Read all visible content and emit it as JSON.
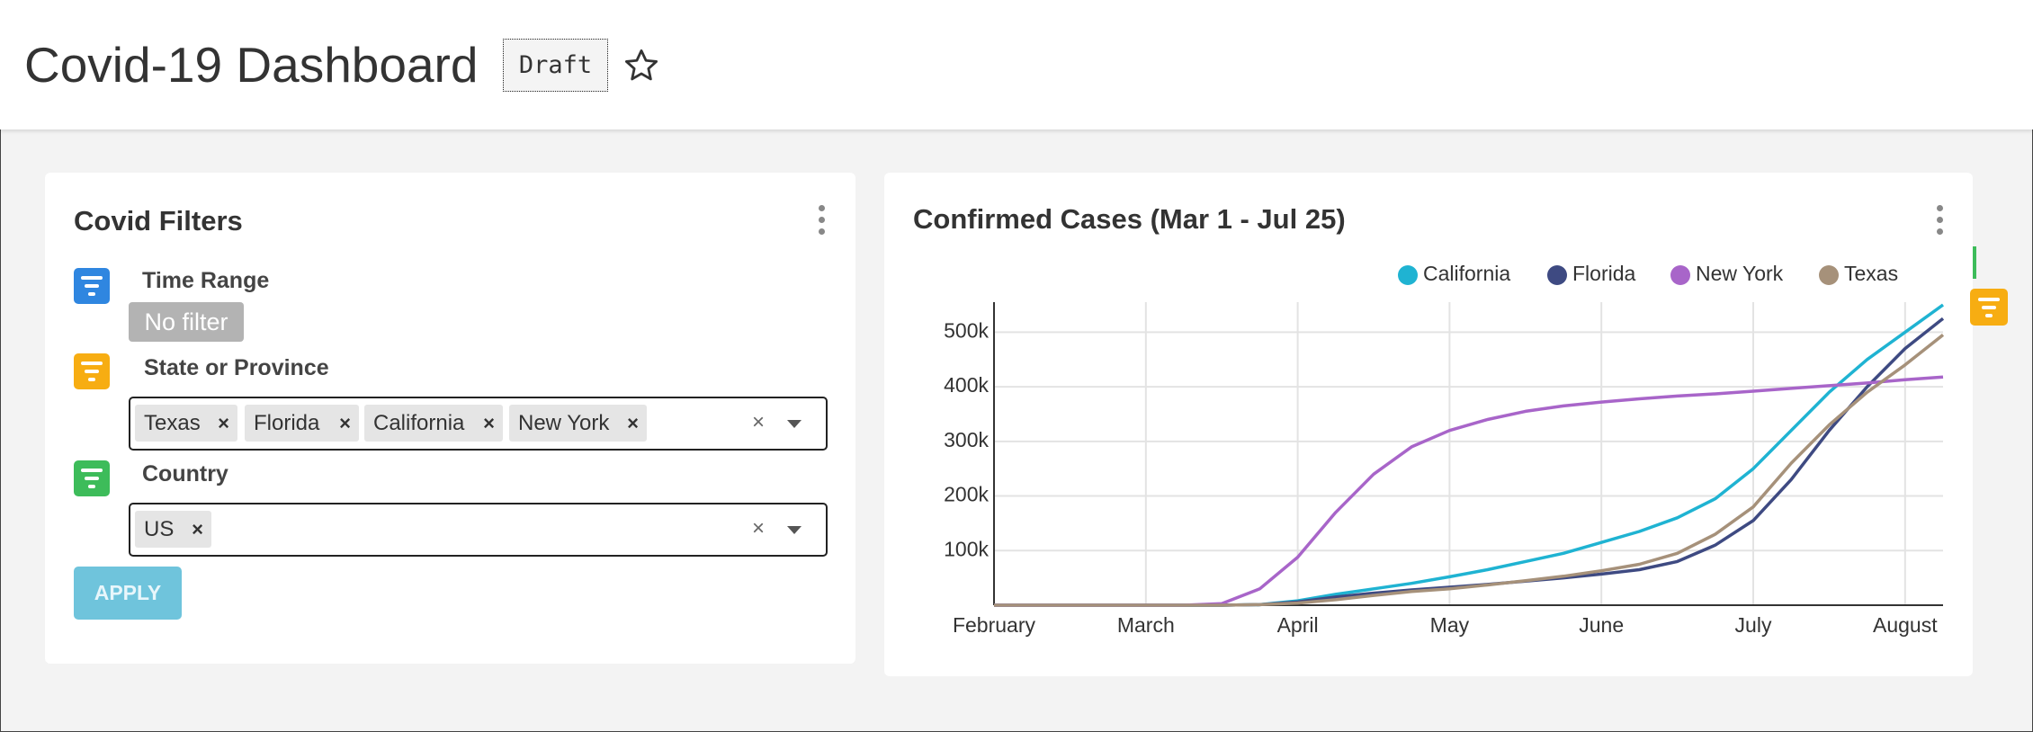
{
  "header": {
    "title": "Covid-19 Dashboard",
    "badge": "Draft"
  },
  "filters": {
    "title": "Covid Filters",
    "time_range": {
      "label": "Time Range",
      "value": "No filter"
    },
    "state": {
      "label": "State or Province",
      "chips": [
        "Texas",
        "Florida",
        "California",
        "New York"
      ]
    },
    "country": {
      "label": "Country",
      "chips": [
        "US"
      ]
    },
    "apply": "APPLY"
  },
  "chart_data": {
    "type": "line",
    "title": "Confirmed Cases (Mar 1 - Jul 25)",
    "categories": [
      "February",
      null,
      null,
      null,
      "March",
      null,
      null,
      null,
      "April",
      null,
      null,
      null,
      "May",
      null,
      null,
      null,
      "June",
      null,
      null,
      null,
      "July",
      null,
      null,
      null,
      "August",
      null
    ],
    "series": [
      {
        "name": "California",
        "color": "#1fb3d2",
        "values": [
          0,
          0,
          0,
          0,
          0,
          0,
          0,
          1000,
          8000,
          20000,
          30000,
          40000,
          52000,
          65000,
          80000,
          95000,
          115000,
          135000,
          160000,
          195000,
          250000,
          320000,
          390000,
          450000,
          500000,
          550000
        ]
      },
      {
        "name": "Florida",
        "color": "#3e4a82",
        "values": [
          0,
          0,
          0,
          0,
          0,
          0,
          0,
          1000,
          6000,
          15000,
          22000,
          28000,
          33000,
          38000,
          44000,
          50000,
          57000,
          65000,
          80000,
          110000,
          155000,
          230000,
          320000,
          400000,
          470000,
          525000
        ]
      },
      {
        "name": "New York",
        "color": "#a865c9",
        "values": [
          0,
          0,
          0,
          0,
          0,
          0,
          3000,
          30000,
          88000,
          170000,
          240000,
          290000,
          320000,
          340000,
          355000,
          365000,
          372000,
          378000,
          383000,
          387000,
          392000,
          397000,
          402000,
          407000,
          413000,
          418000
        ]
      },
      {
        "name": "Texas",
        "color": "#a6917a",
        "values": [
          0,
          0,
          0,
          0,
          0,
          0,
          0,
          1000,
          4000,
          10000,
          18000,
          25000,
          30000,
          37000,
          45000,
          53000,
          63000,
          75000,
          95000,
          130000,
          180000,
          260000,
          330000,
          390000,
          440000,
          495000
        ]
      }
    ],
    "ylim": [
      0,
      555000
    ],
    "yticks": [
      {
        "value": 100000,
        "label": "100k"
      },
      {
        "value": 200000,
        "label": "200k"
      },
      {
        "value": 300000,
        "label": "300k"
      },
      {
        "value": 400000,
        "label": "400k"
      },
      {
        "value": 500000,
        "label": "500k"
      }
    ],
    "grid": true,
    "legend": "top-right"
  }
}
